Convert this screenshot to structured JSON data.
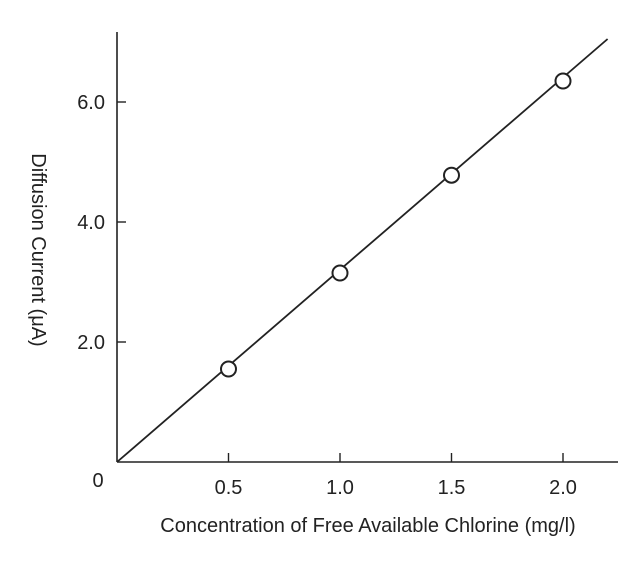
{
  "chart_data": {
    "type": "line",
    "title": "",
    "xlabel": "Concentration of Free Available Chlorine (mg/l)",
    "ylabel": "Diffusion Current (μA)",
    "origin_label": "0",
    "xlim": [
      0,
      2.2
    ],
    "ylim": [
      0,
      7.15
    ],
    "x_ticks": [
      0.5,
      1.0,
      1.5,
      2.0
    ],
    "x_tick_labels": [
      "0.5",
      "1.0",
      "1.5",
      "2.0"
    ],
    "y_ticks": [
      2.0,
      4.0,
      6.0
    ],
    "y_tick_labels": [
      "2.0",
      "4.0",
      "6.0"
    ],
    "grid": false,
    "legend": "none",
    "series": [
      {
        "x": [
          0.5,
          1.0,
          1.5,
          2.0
        ],
        "y": [
          1.55,
          3.15,
          4.78,
          6.35
        ],
        "marker": "open-circle"
      }
    ],
    "fit_line": {
      "x": [
        0,
        2.2
      ],
      "y": [
        0,
        7.05
      ]
    },
    "colors": {
      "line": "#222222",
      "marker_fill": "#ffffff",
      "axis": "#222222"
    }
  }
}
